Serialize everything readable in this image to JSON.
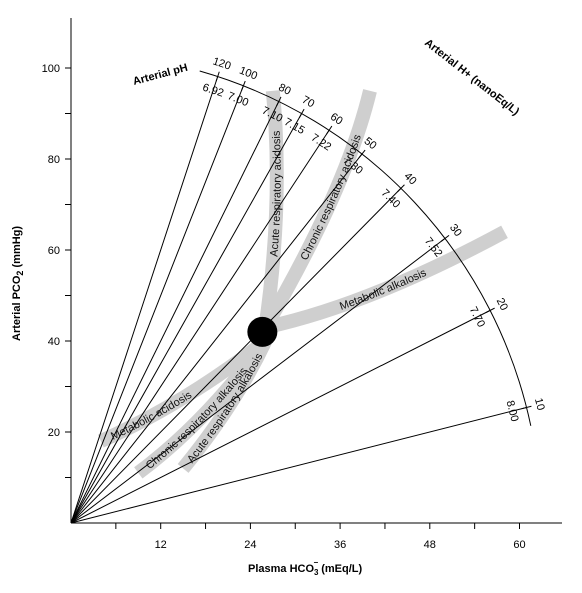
{
  "chart_data": {
    "type": "nomogram",
    "xlabel": "Plasma HCO",
    "xlabel_sub": "3",
    "xlabel_sup": "−",
    "xlabel_units": "(mEq/L)",
    "ylabel": "Arterial PCO",
    "ylabel_sub": "2",
    "ylabel_units": "(mmHg)",
    "xlim": [
      0,
      65
    ],
    "ylim": [
      0,
      110
    ],
    "x_ticks": [
      12,
      24,
      36,
      48,
      60
    ],
    "x_minor_ticks": [
      6,
      18,
      30,
      42,
      54
    ],
    "y_ticks": [
      20,
      40,
      60,
      80,
      100
    ],
    "y_minor_ticks": [
      10,
      30,
      50,
      70,
      90
    ],
    "ph_scale_title": "Arterial pH",
    "h_scale_title": "Arterial H+ (nanoEq/L)",
    "isopleths": [
      {
        "h": 120,
        "ph": "6.92"
      },
      {
        "h": 100,
        "ph": "7.00"
      },
      {
        "h": 80,
        "ph": "7.10"
      },
      {
        "h": 70,
        "ph": "7.15"
      },
      {
        "h": 60,
        "ph": "7.22"
      },
      {
        "h": 50,
        "ph": "7.30"
      },
      {
        "h": 40,
        "ph": "7.40"
      },
      {
        "h": 30,
        "ph": "7.52"
      },
      {
        "h": 20,
        "ph": "7.70"
      },
      {
        "h": 10,
        "ph": "8.00"
      }
    ],
    "bands": [
      {
        "name": "Acute respiratory acidosis",
        "path": [
          [
            26,
            43
          ],
          [
            27.5,
            60
          ],
          [
            28,
            78
          ],
          [
            27,
            95
          ]
        ]
      },
      {
        "name": "Chronic respiratory acidosis",
        "path": [
          [
            26,
            43
          ],
          [
            32,
            60
          ],
          [
            37.5,
            78
          ],
          [
            40,
            95
          ]
        ]
      },
      {
        "name": "Metabolic alkalosis",
        "path": [
          [
            26,
            43
          ],
          [
            40,
            48
          ],
          [
            58,
            64
          ]
        ]
      },
      {
        "name": "Metabolic acidosis",
        "path": [
          [
            26,
            40
          ],
          [
            15,
            26
          ],
          [
            4,
            18
          ]
        ]
      },
      {
        "name": "Chronic respiratory alkalosis",
        "path": [
          [
            26,
            40
          ],
          [
            18,
            22
          ],
          [
            9,
            11
          ]
        ]
      },
      {
        "name": "Acute respiratory alkalosis",
        "path": [
          [
            26,
            40
          ],
          [
            22,
            26
          ],
          [
            15,
            12
          ]
        ]
      }
    ],
    "normal_region": {
      "x": 25.6,
      "y": 42
    }
  }
}
